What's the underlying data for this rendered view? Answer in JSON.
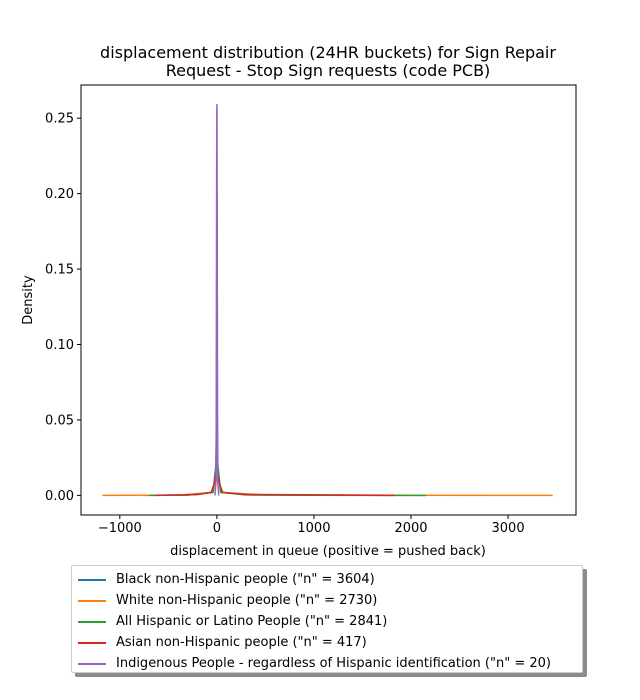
{
  "chart_data": {
    "type": "line",
    "title_lines": [
      "displacement distribution (24HR buckets) for Sign Repair",
      "Request - Stop Sign requests (code PCB)"
    ],
    "xlabel": "displacement in queue (positive = pushed back)",
    "ylabel": "Density",
    "xlim": [
      -1400,
      3700
    ],
    "ylim": [
      -0.013,
      0.272
    ],
    "xticks": [
      -1000,
      0,
      1000,
      2000,
      3000
    ],
    "xtick_labels": [
      "−1000",
      "0",
      "1000",
      "2000",
      "3000"
    ],
    "yticks": [
      0.0,
      0.05,
      0.1,
      0.15,
      0.2,
      0.25
    ],
    "ytick_labels": [
      "0.00",
      "0.05",
      "0.10",
      "0.15",
      "0.20",
      "0.25"
    ],
    "grid": false,
    "legend_placement": "below plot",
    "series": [
      {
        "name": "Black non-Hispanic people (\"n\" = 3604)",
        "color": "#1f77b4",
        "points": [
          [
            -760,
            0
          ],
          [
            -300,
            0.0003
          ],
          [
            -40,
            0.002
          ],
          [
            -10,
            0.02
          ],
          [
            0,
            0.072
          ],
          [
            10,
            0.02
          ],
          [
            40,
            0.002
          ],
          [
            300,
            0.0004
          ],
          [
            1000,
            0.0002
          ],
          [
            2150,
            0
          ]
        ]
      },
      {
        "name": "White non-Hispanic people (\"n\" = 2730)",
        "color": "#ff7f0e",
        "points": [
          [
            -1180,
            0
          ],
          [
            -400,
            0.0002
          ],
          [
            -40,
            0.002
          ],
          [
            -8,
            0.015
          ],
          [
            0,
            0.04
          ],
          [
            8,
            0.015
          ],
          [
            40,
            0.002
          ],
          [
            500,
            0.0003
          ],
          [
            2000,
            0.0001
          ],
          [
            3460,
            0
          ]
        ]
      },
      {
        "name": "All Hispanic or Latino People (\"n\" = 2841)",
        "color": "#2ca02c",
        "points": [
          [
            -700,
            0
          ],
          [
            -300,
            0.0002
          ],
          [
            -40,
            0.002
          ],
          [
            -10,
            0.018
          ],
          [
            0,
            0.06
          ],
          [
            10,
            0.018
          ],
          [
            40,
            0.002
          ],
          [
            300,
            0.0003
          ],
          [
            1000,
            0.0001
          ],
          [
            2150,
            0
          ]
        ]
      },
      {
        "name": "Asian non-Hispanic people (\"n\" = 417)",
        "color": "#d62728",
        "points": [
          [
            -640,
            0
          ],
          [
            -200,
            0.0005
          ],
          [
            -60,
            0.002
          ],
          [
            -25,
            0.008
          ],
          [
            -8,
            0.016
          ],
          [
            0,
            0.018
          ],
          [
            8,
            0.016
          ],
          [
            25,
            0.008
          ],
          [
            60,
            0.002
          ],
          [
            300,
            0.0006
          ],
          [
            1000,
            0.0003
          ],
          [
            1830,
            0
          ]
        ]
      },
      {
        "name": "Indigenous People - regardless of Hispanic identification (\"n\" = 20)",
        "color": "#9467bd",
        "points": [
          [
            -20,
            0
          ],
          [
            -8,
            0.01
          ],
          [
            -3,
            0.2
          ],
          [
            -1,
            0.255
          ],
          [
            0,
            0.259
          ],
          [
            1,
            0.255
          ],
          [
            3,
            0.2
          ],
          [
            8,
            0.01
          ],
          [
            20,
            0
          ]
        ]
      }
    ]
  }
}
